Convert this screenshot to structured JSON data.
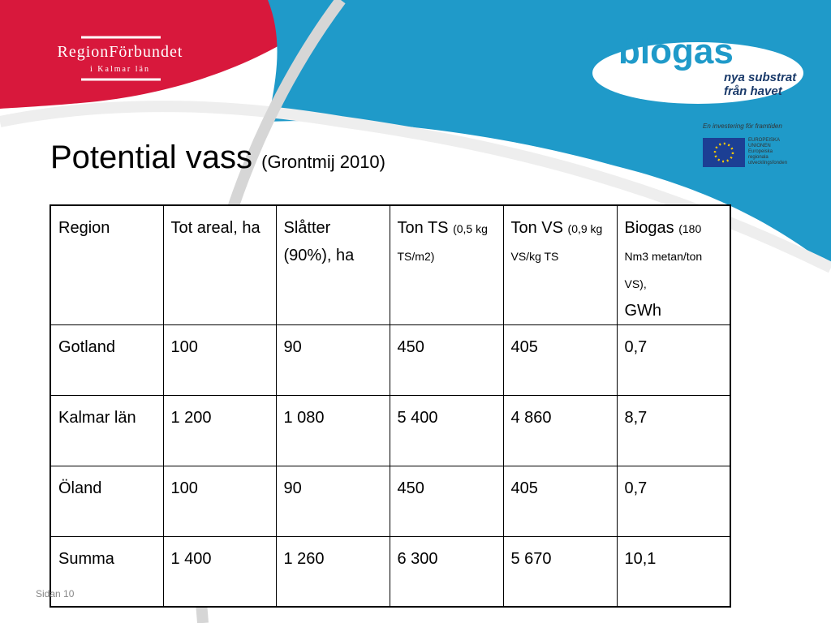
{
  "logos": {
    "org_name": "RegionFörbundet",
    "org_sub": "i Kalmar län",
    "brand": "biogas",
    "brand_tagline_1": "nya substrat",
    "brand_tagline_2": "från havet",
    "eu_slogan": "En investering för framtiden",
    "eu_1": "EUROPEISKA",
    "eu_2": "UNIONEN",
    "eu_3": "Europeiska",
    "eu_4": "regionala",
    "eu_5": "utvecklingsfonden"
  },
  "title": "Potential vass",
  "subtitle": "(Grontmij 2010)",
  "table": {
    "header": [
      {
        "text": "Region"
      },
      {
        "text": "Tot areal, ha"
      },
      {
        "text": "Slåtter (90%), ha"
      },
      {
        "text": "Ton TS",
        "note": "(0,5 kg TS/m2)"
      },
      {
        "text": "Ton VS",
        "note": "(0,9 kg VS/kg TS"
      },
      {
        "text": "Biogas",
        "note": "(180 Nm3 metan/ton VS),",
        "tail": "GWh"
      }
    ],
    "rows": [
      [
        "Gotland",
        "100",
        "90",
        "450",
        "405",
        "0,7"
      ],
      [
        "Kalmar län",
        "1 200",
        "1 080",
        "5 400",
        "4 860",
        "8,7"
      ],
      [
        "Öland",
        "100",
        "90",
        "450",
        "405",
        "0,7"
      ],
      [
        "Summa",
        "1 400",
        "1 260",
        "6 300",
        "5 670",
        "10,1"
      ]
    ]
  },
  "footer": "Sidan 10"
}
